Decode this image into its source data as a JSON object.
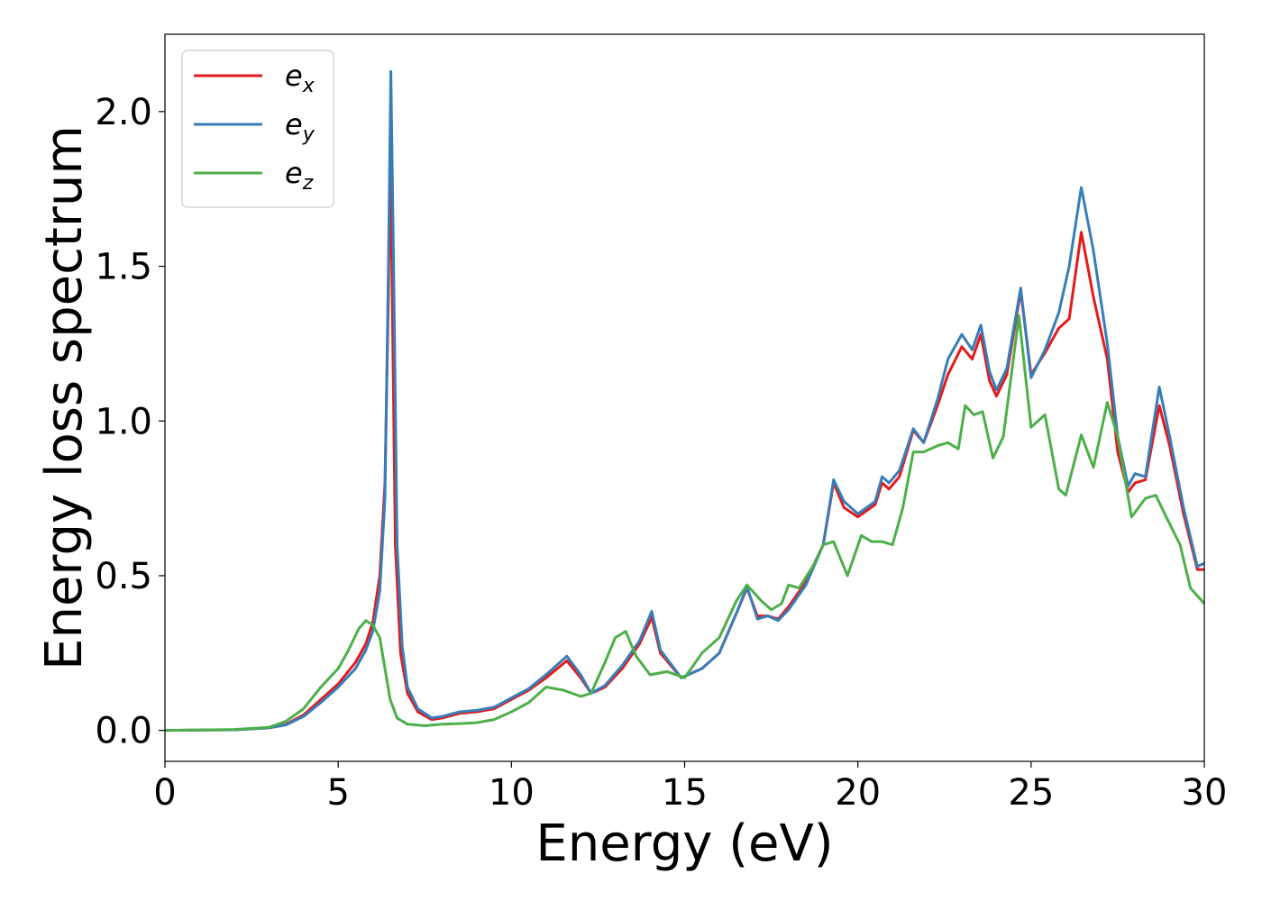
{
  "chart_data": {
    "type": "line",
    "title": "",
    "xlabel": "Energy (eV)",
    "ylabel": "Energy loss spectrum",
    "xlim": [
      0,
      30
    ],
    "ylim": [
      -0.1,
      2.25
    ],
    "xticks": [
      "0",
      "5",
      "10",
      "15",
      "20",
      "25",
      "30"
    ],
    "yticks": [
      "0.0",
      "0.5",
      "1.0",
      "1.5",
      "2.0"
    ],
    "grid": false,
    "legend_position": "top-left",
    "series": [
      {
        "name": "e_x",
        "label_base": "e",
        "label_sub": "x",
        "color": "#e41a1c",
        "points": [
          [
            0,
            0.0
          ],
          [
            2,
            0.002
          ],
          [
            3,
            0.008
          ],
          [
            3.5,
            0.02
          ],
          [
            4,
            0.05
          ],
          [
            4.5,
            0.1
          ],
          [
            5,
            0.15
          ],
          [
            5.5,
            0.22
          ],
          [
            5.8,
            0.28
          ],
          [
            6.0,
            0.35
          ],
          [
            6.2,
            0.5
          ],
          [
            6.35,
            0.8
          ],
          [
            6.45,
            1.4
          ],
          [
            6.5,
            1.85
          ],
          [
            6.55,
            1.5
          ],
          [
            6.65,
            0.6
          ],
          [
            6.8,
            0.25
          ],
          [
            7.0,
            0.12
          ],
          [
            7.3,
            0.06
          ],
          [
            7.7,
            0.035
          ],
          [
            8,
            0.04
          ],
          [
            8.5,
            0.055
          ],
          [
            9,
            0.06
          ],
          [
            9.5,
            0.07
          ],
          [
            10,
            0.1
          ],
          [
            10.5,
            0.13
          ],
          [
            11,
            0.17
          ],
          [
            11.6,
            0.225
          ],
          [
            12,
            0.17
          ],
          [
            12.3,
            0.12
          ],
          [
            12.7,
            0.14
          ],
          [
            13.2,
            0.2
          ],
          [
            13.7,
            0.28
          ],
          [
            14.05,
            0.365
          ],
          [
            14.3,
            0.25
          ],
          [
            14.9,
            0.17
          ],
          [
            15.5,
            0.2
          ],
          [
            16,
            0.25
          ],
          [
            16.5,
            0.38
          ],
          [
            16.8,
            0.46
          ],
          [
            17.1,
            0.37
          ],
          [
            17.4,
            0.37
          ],
          [
            17.7,
            0.36
          ],
          [
            18.0,
            0.4
          ],
          [
            18.5,
            0.48
          ],
          [
            19,
            0.6
          ],
          [
            19.3,
            0.8
          ],
          [
            19.6,
            0.72
          ],
          [
            20,
            0.69
          ],
          [
            20.5,
            0.73
          ],
          [
            20.7,
            0.8
          ],
          [
            20.9,
            0.78
          ],
          [
            21.2,
            0.82
          ],
          [
            21.6,
            0.97
          ],
          [
            21.9,
            0.93
          ],
          [
            22.3,
            1.05
          ],
          [
            22.6,
            1.15
          ],
          [
            23.0,
            1.24
          ],
          [
            23.3,
            1.2
          ],
          [
            23.55,
            1.28
          ],
          [
            23.8,
            1.13
          ],
          [
            24.0,
            1.08
          ],
          [
            24.3,
            1.15
          ],
          [
            24.7,
            1.42
          ],
          [
            25.0,
            1.15
          ],
          [
            25.4,
            1.22
          ],
          [
            25.8,
            1.3
          ],
          [
            26.1,
            1.33
          ],
          [
            26.45,
            1.61
          ],
          [
            26.8,
            1.4
          ],
          [
            27.2,
            1.2
          ],
          [
            27.5,
            0.9
          ],
          [
            27.8,
            0.77
          ],
          [
            28.0,
            0.8
          ],
          [
            28.3,
            0.81
          ],
          [
            28.7,
            1.05
          ],
          [
            29.0,
            0.92
          ],
          [
            29.4,
            0.7
          ],
          [
            29.8,
            0.52
          ],
          [
            30,
            0.52
          ]
        ]
      },
      {
        "name": "e_y",
        "label_base": "e",
        "label_sub": "y",
        "color": "#377eb8",
        "points": [
          [
            0,
            0.0
          ],
          [
            2,
            0.002
          ],
          [
            3,
            0.008
          ],
          [
            3.5,
            0.018
          ],
          [
            4,
            0.045
          ],
          [
            4.5,
            0.09
          ],
          [
            5,
            0.14
          ],
          [
            5.5,
            0.2
          ],
          [
            5.8,
            0.26
          ],
          [
            6.0,
            0.32
          ],
          [
            6.2,
            0.45
          ],
          [
            6.35,
            0.75
          ],
          [
            6.45,
            1.5
          ],
          [
            6.52,
            2.13
          ],
          [
            6.6,
            1.5
          ],
          [
            6.7,
            0.6
          ],
          [
            6.85,
            0.27
          ],
          [
            7.0,
            0.14
          ],
          [
            7.3,
            0.07
          ],
          [
            7.7,
            0.04
          ],
          [
            8,
            0.045
          ],
          [
            8.5,
            0.06
          ],
          [
            9,
            0.065
          ],
          [
            9.5,
            0.075
          ],
          [
            10,
            0.105
          ],
          [
            10.5,
            0.135
          ],
          [
            11,
            0.18
          ],
          [
            11.6,
            0.24
          ],
          [
            12,
            0.18
          ],
          [
            12.3,
            0.12
          ],
          [
            12.7,
            0.145
          ],
          [
            13.2,
            0.21
          ],
          [
            13.7,
            0.29
          ],
          [
            14.05,
            0.385
          ],
          [
            14.3,
            0.26
          ],
          [
            14.9,
            0.17
          ],
          [
            15.5,
            0.2
          ],
          [
            16,
            0.25
          ],
          [
            16.5,
            0.38
          ],
          [
            16.8,
            0.465
          ],
          [
            17.1,
            0.36
          ],
          [
            17.4,
            0.37
          ],
          [
            17.7,
            0.355
          ],
          [
            18.0,
            0.39
          ],
          [
            18.5,
            0.47
          ],
          [
            19,
            0.6
          ],
          [
            19.3,
            0.81
          ],
          [
            19.6,
            0.74
          ],
          [
            20,
            0.7
          ],
          [
            20.5,
            0.74
          ],
          [
            20.7,
            0.82
          ],
          [
            20.9,
            0.8
          ],
          [
            21.2,
            0.84
          ],
          [
            21.6,
            0.975
          ],
          [
            21.9,
            0.93
          ],
          [
            22.3,
            1.07
          ],
          [
            22.6,
            1.2
          ],
          [
            23.0,
            1.28
          ],
          [
            23.3,
            1.23
          ],
          [
            23.55,
            1.31
          ],
          [
            23.8,
            1.16
          ],
          [
            24.0,
            1.1
          ],
          [
            24.3,
            1.17
          ],
          [
            24.7,
            1.43
          ],
          [
            25.0,
            1.14
          ],
          [
            25.4,
            1.23
          ],
          [
            25.8,
            1.35
          ],
          [
            26.1,
            1.5
          ],
          [
            26.45,
            1.755
          ],
          [
            26.8,
            1.55
          ],
          [
            27.2,
            1.25
          ],
          [
            27.5,
            0.95
          ],
          [
            27.8,
            0.79
          ],
          [
            28.0,
            0.83
          ],
          [
            28.3,
            0.82
          ],
          [
            28.7,
            1.11
          ],
          [
            29.0,
            0.95
          ],
          [
            29.4,
            0.72
          ],
          [
            29.8,
            0.53
          ],
          [
            30,
            0.54
          ]
        ]
      },
      {
        "name": "e_z",
        "label_base": "e",
        "label_sub": "z",
        "color": "#4daf4a",
        "points": [
          [
            0,
            0.0
          ],
          [
            2,
            0.003
          ],
          [
            3,
            0.01
          ],
          [
            3.5,
            0.03
          ],
          [
            4,
            0.07
          ],
          [
            4.5,
            0.14
          ],
          [
            5,
            0.2
          ],
          [
            5.3,
            0.26
          ],
          [
            5.6,
            0.33
          ],
          [
            5.8,
            0.355
          ],
          [
            6.0,
            0.34
          ],
          [
            6.2,
            0.3
          ],
          [
            6.35,
            0.2
          ],
          [
            6.5,
            0.1
          ],
          [
            6.7,
            0.04
          ],
          [
            7.0,
            0.02
          ],
          [
            7.5,
            0.015
          ],
          [
            8,
            0.02
          ],
          [
            8.5,
            0.022
          ],
          [
            9,
            0.025
          ],
          [
            9.5,
            0.035
          ],
          [
            10,
            0.06
          ],
          [
            10.5,
            0.09
          ],
          [
            11,
            0.14
          ],
          [
            11.5,
            0.13
          ],
          [
            12,
            0.11
          ],
          [
            12.3,
            0.12
          ],
          [
            12.7,
            0.22
          ],
          [
            13.0,
            0.3
          ],
          [
            13.3,
            0.32
          ],
          [
            13.6,
            0.24
          ],
          [
            14.0,
            0.18
          ],
          [
            14.5,
            0.19
          ],
          [
            15.0,
            0.17
          ],
          [
            15.5,
            0.25
          ],
          [
            16,
            0.3
          ],
          [
            16.5,
            0.42
          ],
          [
            16.8,
            0.47
          ],
          [
            17.2,
            0.42
          ],
          [
            17.5,
            0.39
          ],
          [
            17.8,
            0.41
          ],
          [
            18.0,
            0.47
          ],
          [
            18.3,
            0.46
          ],
          [
            18.7,
            0.53
          ],
          [
            19.0,
            0.6
          ],
          [
            19.3,
            0.61
          ],
          [
            19.7,
            0.5
          ],
          [
            20.1,
            0.63
          ],
          [
            20.4,
            0.61
          ],
          [
            20.7,
            0.61
          ],
          [
            21.0,
            0.6
          ],
          [
            21.3,
            0.72
          ],
          [
            21.6,
            0.9
          ],
          [
            21.9,
            0.9
          ],
          [
            22.3,
            0.92
          ],
          [
            22.6,
            0.93
          ],
          [
            22.9,
            0.91
          ],
          [
            23.1,
            1.05
          ],
          [
            23.35,
            1.02
          ],
          [
            23.6,
            1.03
          ],
          [
            23.9,
            0.88
          ],
          [
            24.2,
            0.95
          ],
          [
            24.65,
            1.34
          ],
          [
            25.0,
            0.98
          ],
          [
            25.4,
            1.02
          ],
          [
            25.8,
            0.78
          ],
          [
            26.0,
            0.76
          ],
          [
            26.45,
            0.955
          ],
          [
            26.8,
            0.85
          ],
          [
            27.2,
            1.06
          ],
          [
            27.5,
            0.95
          ],
          [
            27.9,
            0.69
          ],
          [
            28.3,
            0.75
          ],
          [
            28.6,
            0.76
          ],
          [
            28.9,
            0.69
          ],
          [
            29.3,
            0.6
          ],
          [
            29.6,
            0.46
          ],
          [
            30,
            0.41
          ]
        ]
      }
    ]
  }
}
